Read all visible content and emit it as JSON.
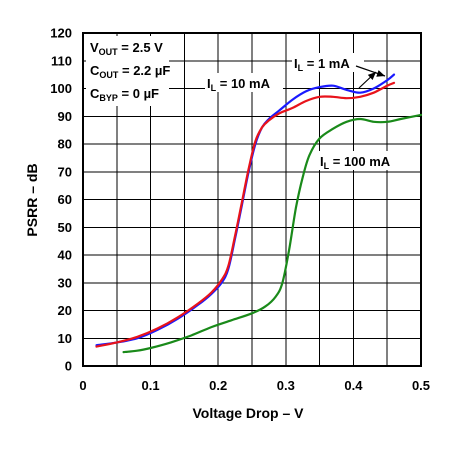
{
  "chart_data": {
    "type": "line",
    "xlabel": "Voltage Drop – V",
    "ylabel": "PSRR – dB",
    "xlim": [
      0,
      0.5
    ],
    "ylim": [
      0,
      120
    ],
    "xticks": [
      0,
      0.1,
      0.2,
      0.3,
      0.4,
      0.5
    ],
    "yticks": [
      0,
      10,
      20,
      30,
      40,
      50,
      60,
      70,
      80,
      90,
      100,
      110,
      120
    ],
    "xtick_labels": [
      "0",
      "0.1",
      "0.2",
      "0.3",
      "0.4",
      "0.5"
    ],
    "ytick_labels": [
      "0",
      "10",
      "20",
      "30",
      "40",
      "50",
      "60",
      "70",
      "80",
      "90",
      "100",
      "110",
      "120"
    ],
    "grid": true,
    "conditions": [
      {
        "main": "V",
        "sub": "OUT",
        "rest": " = 2.5 V"
      },
      {
        "main": "C",
        "sub": "OUT",
        "rest": " = 2.2 µF"
      },
      {
        "main": "C",
        "sub": "BYP",
        "rest": " = 0 µF"
      }
    ],
    "series": [
      {
        "name_main": "I",
        "name_sub": "L",
        "name_rest": " = 1 mA",
        "color": "#1a1aff",
        "x": [
          0.02,
          0.05,
          0.08,
          0.11,
          0.14,
          0.17,
          0.19,
          0.205,
          0.215,
          0.225,
          0.235,
          0.245,
          0.255,
          0.265,
          0.275,
          0.29,
          0.31,
          0.33,
          0.35,
          0.37,
          0.39,
          0.41,
          0.43,
          0.45,
          0.46
        ],
        "y": [
          7.5,
          8.5,
          10,
          13,
          17,
          22,
          26,
          30,
          35,
          46,
          58,
          70,
          80,
          86,
          89,
          92,
          96,
          99,
          100.5,
          101,
          99.5,
          98.5,
          100,
          103,
          105
        ]
      },
      {
        "name_main": "I",
        "name_sub": "L",
        "name_rest": " = 10 mA",
        "color": "#e8131b",
        "x": [
          0.02,
          0.05,
          0.08,
          0.11,
          0.14,
          0.17,
          0.19,
          0.205,
          0.215,
          0.225,
          0.235,
          0.245,
          0.255,
          0.265,
          0.275,
          0.29,
          0.31,
          0.33,
          0.35,
          0.37,
          0.39,
          0.41,
          0.43,
          0.45,
          0.46
        ],
        "y": [
          7,
          8.5,
          10.5,
          13.5,
          17.5,
          22.5,
          26.5,
          31,
          36,
          47,
          59,
          71,
          81,
          86,
          88.5,
          91,
          93,
          95.5,
          97,
          97,
          96.5,
          97,
          98.5,
          101,
          102
        ]
      },
      {
        "name_main": "I",
        "name_sub": "L",
        "name_rest": " = 100 mA",
        "color": "#1a8a1a",
        "x": [
          0.06,
          0.08,
          0.1,
          0.13,
          0.16,
          0.19,
          0.22,
          0.25,
          0.27,
          0.285,
          0.295,
          0.305,
          0.315,
          0.325,
          0.335,
          0.35,
          0.37,
          0.39,
          0.41,
          0.43,
          0.45,
          0.47,
          0.5
        ],
        "y": [
          5,
          5.5,
          6.5,
          8.5,
          11,
          14,
          16.5,
          19,
          21.5,
          25,
          30,
          42,
          57,
          68,
          76,
          82,
          85.5,
          88,
          89,
          88,
          88,
          89,
          90.5
        ]
      }
    ]
  }
}
